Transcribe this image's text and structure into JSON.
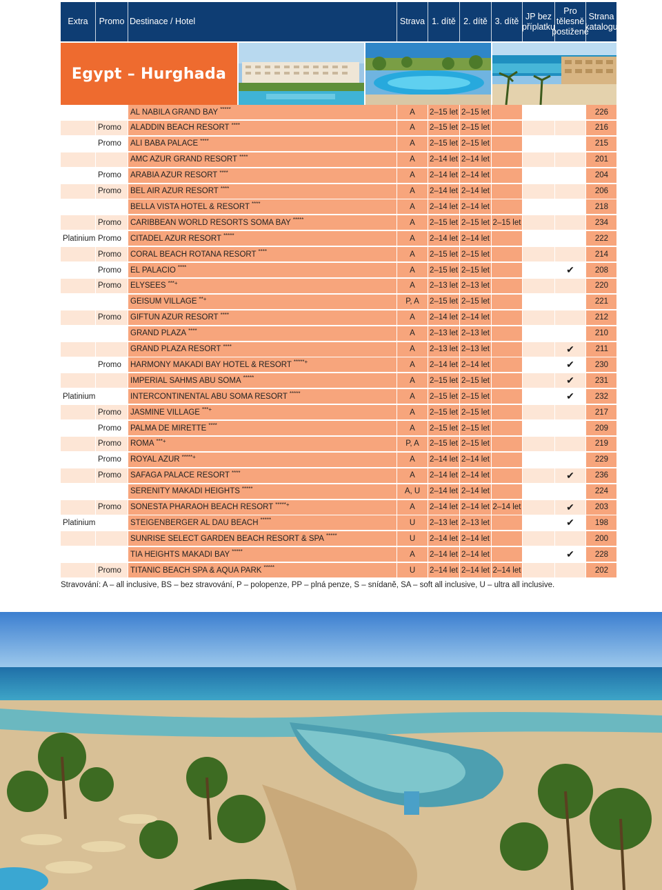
{
  "header": {
    "extra": "Extra",
    "promo": "Promo",
    "destination": "Destinace / Hotel",
    "meal": "Strava",
    "child1": "1. dítě",
    "child2": "2. dítě",
    "child3": "3. dítě",
    "jp_line1": "JP bez",
    "jp_line2": "příplatku",
    "pro_line1": "Pro",
    "pro_line2": "tělesně",
    "pro_line3": "postižené",
    "page_line1": "Strana",
    "page_line2": "katalogu"
  },
  "banner": {
    "title": "Egypt – Hurghada"
  },
  "check_mark": "✔",
  "hotels": [
    {
      "extra": "",
      "promo": "",
      "name": "AL NABILA GRAND BAY",
      "stars": "*****",
      "meal": "A",
      "c1": "2–15 let",
      "c2": "2–15 let",
      "c3": "",
      "pro": "",
      "page": "226"
    },
    {
      "extra": "",
      "promo": "Promo",
      "name": "ALADDIN BEACH RESORT",
      "stars": "****",
      "meal": "A",
      "c1": "2–15 let",
      "c2": "2–15 let",
      "c3": "",
      "pro": "",
      "page": "216"
    },
    {
      "extra": "",
      "promo": "Promo",
      "name": "ALI BABA PALACE",
      "stars": "****",
      "meal": "A",
      "c1": "2–15 let",
      "c2": "2–15 let",
      "c3": "",
      "pro": "",
      "page": "215"
    },
    {
      "extra": "",
      "promo": "",
      "name": "AMC AZUR GRAND RESORT",
      "stars": "****",
      "meal": "A",
      "c1": "2–14 let",
      "c2": "2–14 let",
      "c3": "",
      "pro": "",
      "page": "201"
    },
    {
      "extra": "",
      "promo": "Promo",
      "name": "ARABIA AZUR RESORT",
      "stars": "****",
      "meal": "A",
      "c1": "2–14 let",
      "c2": "2–14 let",
      "c3": "",
      "pro": "",
      "page": "204"
    },
    {
      "extra": "",
      "promo": "Promo",
      "name": "BEL AIR AZUR RESORT",
      "stars": "****",
      "meal": "A",
      "c1": "2–14 let",
      "c2": "2–14 let",
      "c3": "",
      "pro": "",
      "page": "206"
    },
    {
      "extra": "",
      "promo": "",
      "name": "BELLA VISTA HOTEL & RESORT",
      "stars": "****",
      "meal": "A",
      "c1": "2–14 let",
      "c2": "2–14 let",
      "c3": "",
      "pro": "",
      "page": "218"
    },
    {
      "extra": "",
      "promo": "Promo",
      "name": "CARIBBEAN WORLD RESORTS SOMA BAY",
      "stars": "*****",
      "meal": "A",
      "c1": "2–15 let",
      "c2": "2–15 let",
      "c3": "2–15 let",
      "pro": "",
      "page": "234"
    },
    {
      "extra": "Platinium",
      "promo": "Promo",
      "name": "CITADEL AZUR RESORT",
      "stars": "*****",
      "meal": "A",
      "c1": "2–14 let",
      "c2": "2–14 let",
      "c3": "",
      "pro": "",
      "page": "222"
    },
    {
      "extra": "",
      "promo": "Promo",
      "name": "CORAL BEACH ROTANA RESORT",
      "stars": "****",
      "meal": "A",
      "c1": "2–15 let",
      "c2": "2–15 let",
      "c3": "",
      "pro": "",
      "page": "214"
    },
    {
      "extra": "",
      "promo": "Promo",
      "name": "EL PALACIO",
      "stars": "****",
      "meal": "A",
      "c1": "2–15 let",
      "c2": "2–15 let",
      "c3": "",
      "pro": "yes",
      "page": "208"
    },
    {
      "extra": "",
      "promo": "Promo",
      "name": "ELYSEES",
      "stars": "***+",
      "meal": "A",
      "c1": "2–13 let",
      "c2": "2–13 let",
      "c3": "",
      "pro": "",
      "page": "220"
    },
    {
      "extra": "",
      "promo": "",
      "name": "GEISUM VILLAGE",
      "stars": "**+",
      "meal": "P, A",
      "c1": "2–15 let",
      "c2": "2–15 let",
      "c3": "",
      "pro": "",
      "page": "221"
    },
    {
      "extra": "",
      "promo": "Promo",
      "name": "GIFTUN AZUR RESORT",
      "stars": "****",
      "meal": "A",
      "c1": "2–14 let",
      "c2": "2–14 let",
      "c3": "",
      "pro": "",
      "page": "212"
    },
    {
      "extra": "",
      "promo": "",
      "name": "GRAND PLAZA",
      "stars": "****",
      "meal": "A",
      "c1": "2–13 let",
      "c2": "2–13 let",
      "c3": "",
      "pro": "",
      "page": "210"
    },
    {
      "extra": "",
      "promo": "",
      "name": "GRAND PLAZA RESORT",
      "stars": "****",
      "meal": "A",
      "c1": "2–13 let",
      "c2": "2–13 let",
      "c3": "",
      "pro": "yes",
      "page": "211"
    },
    {
      "extra": "",
      "promo": "Promo",
      "name": "HARMONY MAKADI BAY HOTEL & RESORT",
      "stars": "*****+",
      "meal": "A",
      "c1": "2–14 let",
      "c2": "2–14 let",
      "c3": "",
      "pro": "yes",
      "page": "230"
    },
    {
      "extra": "",
      "promo": "",
      "name": "IMPERIAL SAHMS ABU SOMA",
      "stars": "*****",
      "meal": "A",
      "c1": "2–15 let",
      "c2": "2–15 let",
      "c3": "",
      "pro": "yes",
      "page": "231"
    },
    {
      "extra": "Platinium",
      "promo": "",
      "name": "INTERCONTINENTAL ABU SOMA RESORT",
      "stars": "*****",
      "meal": "A",
      "c1": "2–15 let",
      "c2": "2–15 let",
      "c3": "",
      "pro": "yes",
      "page": "232"
    },
    {
      "extra": "",
      "promo": "Promo",
      "name": "JASMINE VILLAGE",
      "stars": "***+",
      "meal": "A",
      "c1": "2–15 let",
      "c2": "2–15 let",
      "c3": "",
      "pro": "",
      "page": "217"
    },
    {
      "extra": "",
      "promo": "Promo",
      "name": "PALMA DE MIRETTE",
      "stars": "****",
      "meal": "A",
      "c1": "2–15 let",
      "c2": "2–15 let",
      "c3": "",
      "pro": "",
      "page": "209"
    },
    {
      "extra": "",
      "promo": "Promo",
      "name": "ROMA",
      "stars": "***+",
      "meal": "P, A",
      "c1": "2–15 let",
      "c2": "2–15 let",
      "c3": "",
      "pro": "",
      "page": "219"
    },
    {
      "extra": "",
      "promo": "Promo",
      "name": "ROYAL AZUR",
      "stars": "*****+",
      "meal": "A",
      "c1": "2–14 let",
      "c2": "2–14 let",
      "c3": "",
      "pro": "",
      "page": "229"
    },
    {
      "extra": "",
      "promo": "Promo",
      "name": "SAFAGA PALACE RESORT",
      "stars": "****",
      "meal": "A",
      "c1": "2–14 let",
      "c2": "2–14 let",
      "c3": "",
      "pro": "yes",
      "page": "236"
    },
    {
      "extra": "",
      "promo": "",
      "name": "SERENITY MAKADI HEIGHTS",
      "stars": "*****",
      "meal": "A, U",
      "c1": "2–14 let",
      "c2": "2–14 let",
      "c3": "",
      "pro": "",
      "page": "224"
    },
    {
      "extra": "",
      "promo": "Promo",
      "name": "SONESTA PHARAOH BEACH RESORT",
      "stars": "*****+",
      "meal": "A",
      "c1": "2–14 let",
      "c2": "2–14 let",
      "c3": "2–14 let",
      "pro": "yes",
      "page": "203"
    },
    {
      "extra": "Platinium",
      "promo": "",
      "name": "STEIGENBERGER AL DAU BEACH",
      "stars": "*****",
      "meal": "U",
      "c1": "2–13 let",
      "c2": "2–13 let",
      "c3": "",
      "pro": "yes",
      "page": "198"
    },
    {
      "extra": "",
      "promo": "",
      "name": "SUNRISE SELECT GARDEN BEACH RESORT & SPA",
      "stars": "*****",
      "meal": "U",
      "c1": "2–14 let",
      "c2": "2–14 let",
      "c3": "",
      "pro": "",
      "page": "200"
    },
    {
      "extra": "",
      "promo": "",
      "name": "TIA HEIGHTS MAKADI BAY",
      "stars": "*****",
      "meal": "A",
      "c1": "2–14 let",
      "c2": "2–14 let",
      "c3": "",
      "pro": "yes",
      "page": "228"
    },
    {
      "extra": "",
      "promo": "Promo",
      "name": "TITANIC BEACH SPA & AQUA PARK",
      "stars": "*****",
      "meal": "U",
      "c1": "2–14 let",
      "c2": "2–14 let",
      "c3": "2–14 let",
      "pro": "",
      "page": "202"
    }
  ],
  "legend": "Stravování: A – all inclusive, BS – bez stravování, P – polopenze, PP – plná penze, S – snídaně, SA – soft all inclusive, U – ultra all inclusive."
}
